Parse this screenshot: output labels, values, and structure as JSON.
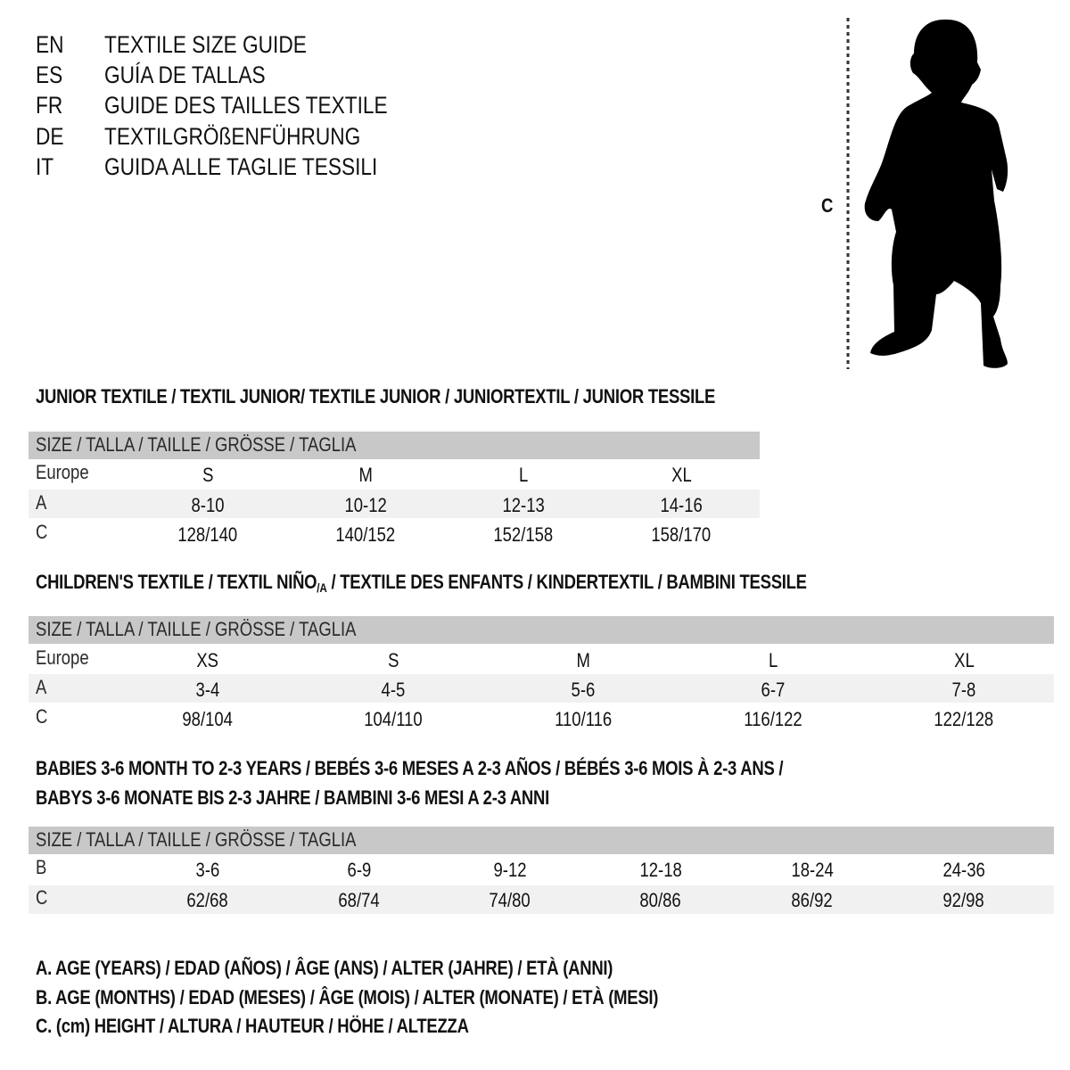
{
  "title_lines": [
    {
      "code": "EN",
      "text": "TEXTILE SIZE GUIDE"
    },
    {
      "code": "ES",
      "text": "GUÍA DE TALLAS"
    },
    {
      "code": "FR",
      "text": "GUIDE DES TAILLES TEXTILE"
    },
    {
      "code": "DE",
      "text": "TEXTILGRÖßENFÜHRUNG"
    },
    {
      "code": "IT",
      "text": "GUIDA ALLE TAGLIE TESSILI"
    }
  ],
  "figure": {
    "measure_label": "C",
    "icon": "child-silhouette-icon"
  },
  "size_header": "SIZE / TALLA / TAILLE / GRÖSSE / TAGLIA",
  "colors": {
    "header_bar": "#c8c8c8",
    "stripe": "#f1f1f1"
  },
  "junior": {
    "heading": "JUNIOR TEXTILE / TEXTIL JUNIOR/ TEXTILE JUNIOR / JUNIORTEXTIL / JUNIOR TESSILE",
    "rows": [
      {
        "label": "Europe",
        "values": [
          "S",
          "M",
          "L",
          "XL"
        ]
      },
      {
        "label": "A",
        "values": [
          "8-10",
          "10-12",
          "12-13",
          "14-16"
        ]
      },
      {
        "label": "C",
        "values": [
          "128/140",
          "140/152",
          "152/158",
          "158/170"
        ]
      }
    ]
  },
  "children": {
    "heading_a": "CHILDREN'S TEXTILE / TEXTIL NIÑO",
    "heading_sub": "/A",
    "heading_b": " / TEXTILE DES ENFANTS / KINDERTEXTIL / BAMBINI TESSILE",
    "rows": [
      {
        "label": "Europe",
        "values": [
          "XS",
          "S",
          "M",
          "L",
          "XL"
        ]
      },
      {
        "label": "A",
        "values": [
          "3-4",
          "4-5",
          "5-6",
          "6-7",
          "7-8"
        ]
      },
      {
        "label": "C",
        "values": [
          "98/104",
          "104/110",
          "110/116",
          "116/122",
          "122/128"
        ]
      }
    ]
  },
  "babies": {
    "heading_line1": "BABIES 3-6 MONTH TO 2-3 YEARS / BEBÉS 3-6 MESES A 2-3 AÑOS / BÉBÉS 3-6 MOIS À 2-3 ANS /",
    "heading_line2": "BABYS 3-6 MONATE BIS 2-3 JAHRE / BAMBINI 3-6 MESI A 2-3 ANNI",
    "rows": [
      {
        "label": "B",
        "values": [
          "3-6",
          "6-9",
          "9-12",
          "12-18",
          "18-24",
          "24-36"
        ]
      },
      {
        "label": "C",
        "values": [
          "62/68",
          "68/74",
          "74/80",
          "80/86",
          "86/92",
          "92/98"
        ]
      }
    ]
  },
  "legend": [
    "A. AGE (YEARS) / EDAD (AÑOS) / ÂGE (ANS) / ALTER (JAHRE) / ETÀ (ANNI)",
    "B. AGE (MONTHS) / EDAD (MESES) / ÂGE (MOIS) / ALTER (MONATE) / ETÀ (MESI)",
    "C. (cm) HEIGHT / ALTURA / HAUTEUR / HÖHE / ALTEZZA"
  ]
}
